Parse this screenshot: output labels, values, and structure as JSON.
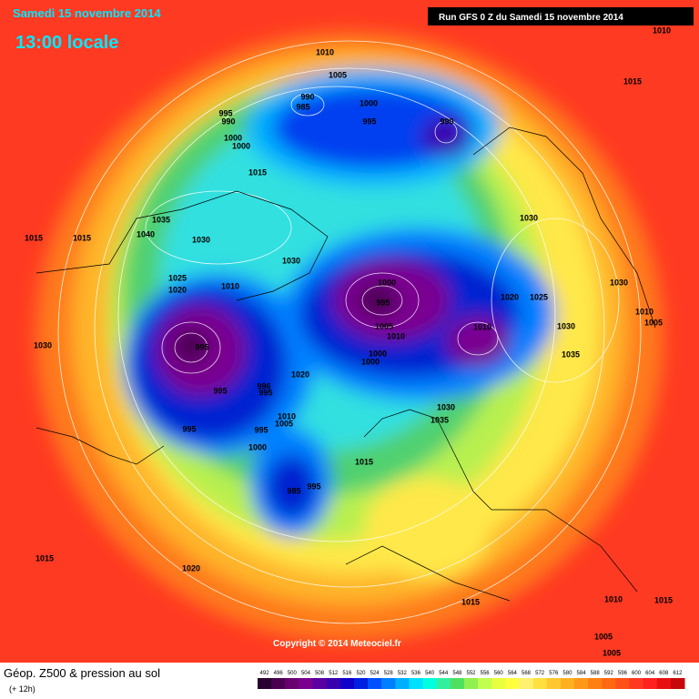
{
  "header": {
    "date": "Samedi 15 novembre 2014",
    "time": "13:00 locale",
    "run": "Run GFS 0 Z du Samedi 15 novembre 2014"
  },
  "copyright": "Copyright © 2014 Meteociel.fr",
  "footer": {
    "title": "Géop. Z500 & pression au sol",
    "lead": "(+ 12h)"
  },
  "legend": {
    "labels": [
      492,
      496,
      500,
      504,
      508,
      512,
      516,
      520,
      524,
      528,
      532,
      536,
      540,
      544,
      548,
      552,
      556,
      560,
      564,
      568,
      572,
      576,
      580,
      584,
      588,
      592,
      596,
      600,
      604,
      608,
      612
    ],
    "colors": [
      "#2a0030",
      "#4a0050",
      "#6a0070",
      "#7a0090",
      "#5a00a0",
      "#3a00b0",
      "#1000c8",
      "#0020e0",
      "#0050ff",
      "#0080ff",
      "#00b0ff",
      "#00e0ff",
      "#00ffe0",
      "#30f0a0",
      "#50e060",
      "#90f050",
      "#c0ff50",
      "#e8ff40",
      "#ffff40",
      "#fff070",
      "#ffe040",
      "#ffc830",
      "#ffb020",
      "#ff9818",
      "#ff8010",
      "#ff6810",
      "#ff5018",
      "#ff3820",
      "#ff2020",
      "#e81010",
      "#c80808"
    ]
  },
  "isobar_labels": [
    1010,
    1015,
    1010,
    1005,
    990,
    985,
    1000,
    995,
    990,
    995,
    990,
    1000,
    1000,
    1015,
    1035,
    1040,
    1030,
    1015,
    1015,
    1030,
    1030,
    1025,
    1020,
    1010,
    1000,
    995,
    1020,
    1025,
    1030,
    1010,
    1005,
    1005,
    1010,
    1010,
    1030,
    995,
    1030,
    1000,
    1000,
    1035,
    1020,
    995,
    996,
    995,
    1010,
    1005,
    1030,
    1035,
    995,
    995,
    1000,
    1015,
    995,
    985,
    1015,
    1020,
    1015,
    1010,
    1005,
    1005,
    1015
  ]
}
